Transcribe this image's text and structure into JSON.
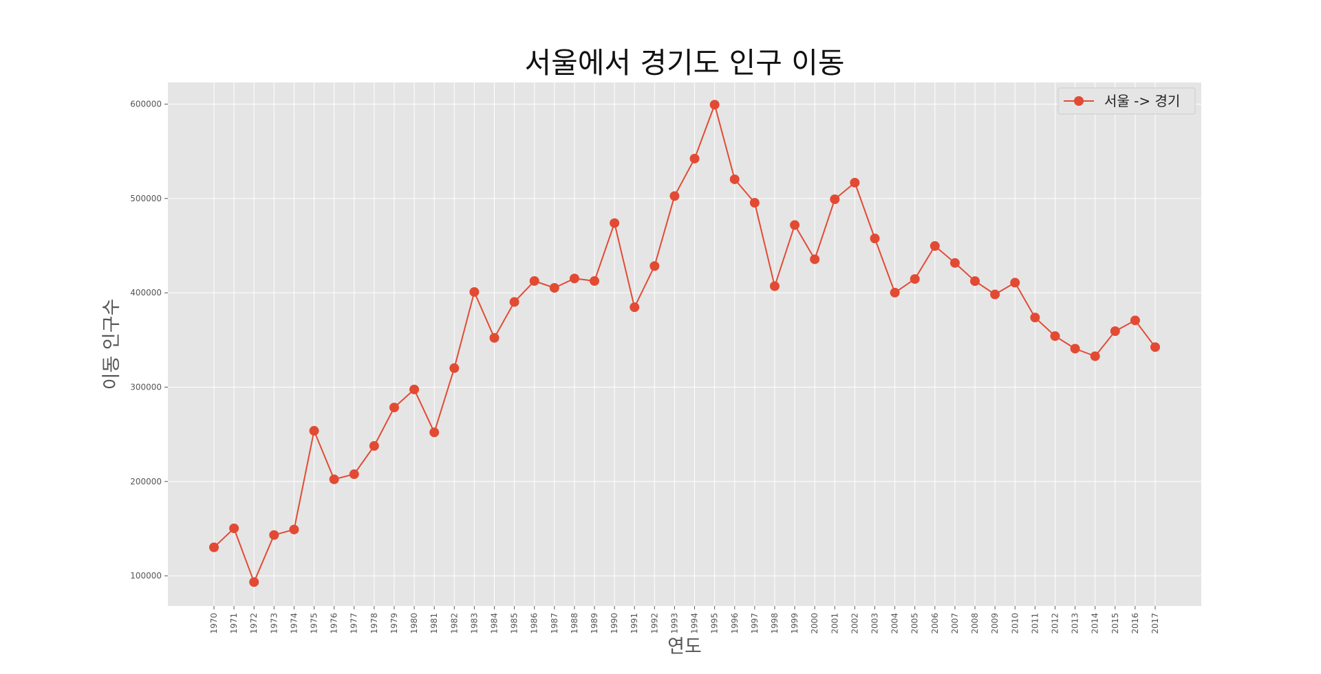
{
  "chart_data": {
    "type": "line",
    "title": "서울에서 경기도 인구 이동",
    "xlabel": "연도",
    "ylabel": "이동 인구수",
    "x": [
      "1970",
      "1971",
      "1972",
      "1973",
      "1974",
      "1975",
      "1976",
      "1977",
      "1978",
      "1979",
      "1980",
      "1981",
      "1982",
      "1983",
      "1984",
      "1985",
      "1986",
      "1987",
      "1988",
      "1989",
      "1990",
      "1991",
      "1992",
      "1993",
      "1994",
      "1995",
      "1996",
      "1997",
      "1998",
      "1999",
      "2000",
      "2001",
      "2002",
      "2003",
      "2004",
      "2005",
      "2006",
      "2007",
      "2008",
      "2009",
      "2010",
      "2011",
      "2012",
      "2013",
      "2014",
      "2015",
      "2016",
      "2017"
    ],
    "series": [
      {
        "name": "서울 -> 경기",
        "values": [
          130149,
          150313,
          93333,
          143234,
          149045,
          253705,
          202276,
          207722,
          237684,
          278411,
          297539,
          252073,
          320174,
          400875,
          352238,
          390265,
          412535,
          405220,
          415174,
          412542,
          473889,
          384714,
          428344,
          502584,
          542284,
          599411,
          520342,
          495454,
          407050,
          471841,
          435573,
          499175,
          516765,
          457656,
          400206,
          414621,
          449632,
          431637,
          412408,
          398282,
          410735,
          373771,
          354135,
          340801,
          332785,
          359337,
          370760,
          342433
        ]
      }
    ],
    "yticks": [
      "100000",
      "200000",
      "300000",
      "400000",
      "500000",
      "600000"
    ],
    "ylim": [
      68000,
      623000
    ],
    "grid": true,
    "legend_position": "upper right",
    "style": "ggplot",
    "colors": {
      "line": "#E24A33",
      "plot_background": "#E5E5E5",
      "grid": "#FFFFFF"
    }
  }
}
